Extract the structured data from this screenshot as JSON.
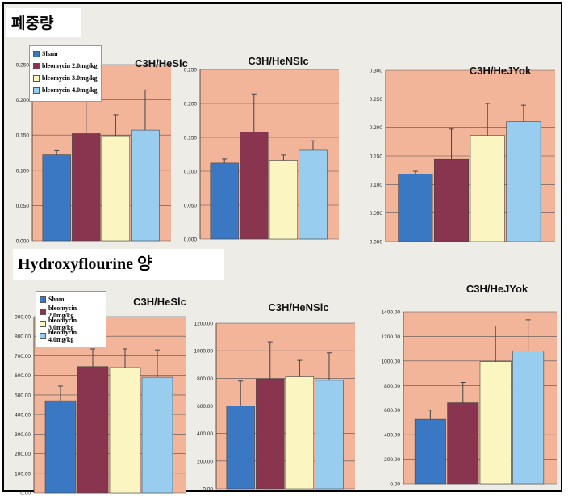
{
  "sections": {
    "top_label": "폐중량",
    "bottom_label": "Hydroxyflourine 양"
  },
  "legend": [
    {
      "label": "Sham",
      "color": "#3b78c4"
    },
    {
      "label": "bleomycin 2.0mg/kg",
      "color": "#8a3550"
    },
    {
      "label": "bleomycin 3.0mg/kg",
      "color": "#fbf5c2"
    },
    {
      "label": "bleomycin 4.0mg/kg",
      "color": "#99cdf0"
    }
  ],
  "colors": {
    "plot_bg": "#f2b59a",
    "frame_bg": "#eeece6",
    "gridline": "#555555"
  },
  "chart_data": [
    {
      "type": "bar",
      "title": "C3H/HeSlc",
      "categories": [
        "Sham",
        "bleomycin 2.0mg/kg",
        "bleomycin 3.0mg/kg",
        "bleomycin 4.0mg/kg"
      ],
      "values": [
        0.122,
        0.152,
        0.149,
        0.157
      ],
      "errors": [
        0.006,
        0.048,
        0.03,
        0.057
      ],
      "ylim": [
        0,
        0.25
      ],
      "yticks": [
        "0.000",
        "0.050",
        "0.100",
        "0.150",
        "0.200",
        "0.250"
      ]
    },
    {
      "type": "bar",
      "title": "C3H/HeNSlc",
      "categories": [
        "Sham",
        "bleomycin 2.0mg/kg",
        "bleomycin 3.0mg/kg",
        "bleomycin 4.0mg/kg"
      ],
      "values": [
        0.112,
        0.158,
        0.116,
        0.131
      ],
      "errors": [
        0.006,
        0.056,
        0.008,
        0.014
      ],
      "ylim": [
        0,
        0.25
      ],
      "yticks": [
        "0.000",
        "0.050",
        "0.100",
        "0.150",
        "0.200",
        "0.250"
      ]
    },
    {
      "type": "bar",
      "title": "C3H/HeJYok",
      "categories": [
        "Sham",
        "bleomycin 2.0mg/kg",
        "bleomycin 3.0mg/kg",
        "bleomycin 4.0mg/kg"
      ],
      "values": [
        0.118,
        0.144,
        0.186,
        0.21
      ],
      "errors": [
        0.005,
        0.053,
        0.056,
        0.029
      ],
      "ylim": [
        0,
        0.3
      ],
      "yticks": [
        "0.000",
        "0.050",
        "0.100",
        "0.150",
        "0.200",
        "0.250",
        "0.300"
      ]
    },
    {
      "type": "bar",
      "title": "C3H/HeSlc",
      "categories": [
        "Sham",
        "bleomycin 2.0mg/kg",
        "bleomycin 3.0mg/kg",
        "bleomycin 4.0mg/kg"
      ],
      "values": [
        470,
        645,
        640,
        590
      ],
      "errors": [
        75,
        90,
        95,
        140
      ],
      "ylim": [
        0,
        900
      ],
      "yticks": [
        "0.00",
        "100.00",
        "200.00",
        "300.00",
        "400.00",
        "500.00",
        "600.00",
        "700.00",
        "800.00",
        "900.00"
      ]
    },
    {
      "type": "bar",
      "title": "C3H/HeNSlc",
      "categories": [
        "Sham",
        "bleomycin 2.0mg/kg",
        "bleomycin 3.0mg/kg",
        "bleomycin 4.0mg/kg"
      ],
      "values": [
        600,
        795,
        810,
        785
      ],
      "errors": [
        180,
        270,
        120,
        200
      ],
      "ylim": [
        0,
        1200
      ],
      "yticks": [
        "0.00",
        "200.00",
        "400.00",
        "600.00",
        "800.00",
        "1000.00",
        "1200.00"
      ]
    },
    {
      "type": "bar",
      "title": "C3H/HeJYok",
      "categories": [
        "Sham",
        "bleomycin 2.0mg/kg",
        "bleomycin 3.0mg/kg",
        "bleomycin 4.0mg/kg"
      ],
      "values": [
        525,
        660,
        995,
        1080
      ],
      "errors": [
        75,
        165,
        290,
        255
      ],
      "ylim": [
        0,
        1400
      ],
      "yticks": [
        "0.00",
        "200.00",
        "400.00",
        "600.00",
        "800.00",
        "1000.00",
        "1200.00",
        "1400.00"
      ]
    }
  ]
}
